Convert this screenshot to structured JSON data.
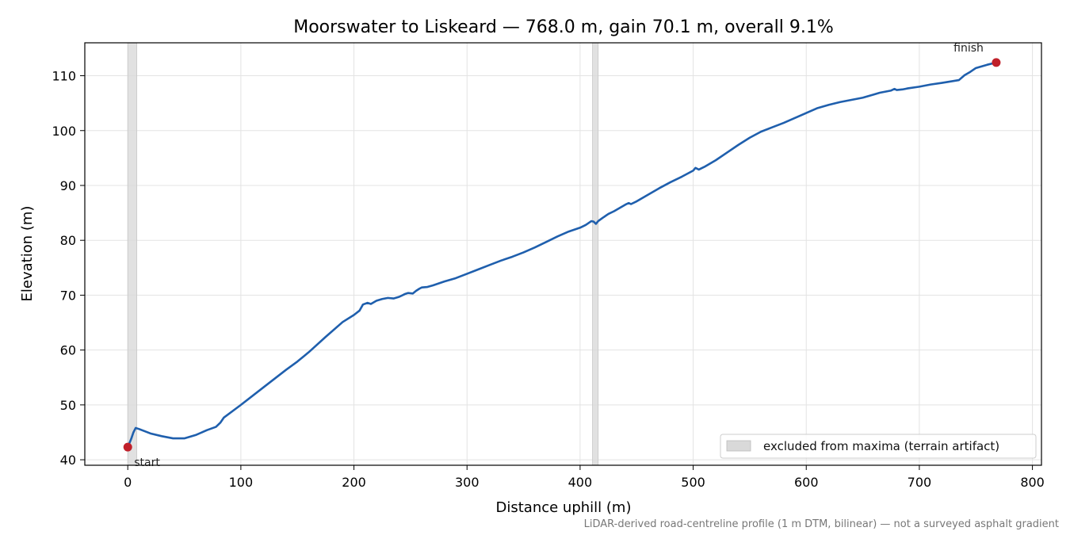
{
  "chart_data": {
    "type": "line",
    "title": "Moorswater to Liskeard — 768.0 m, gain 70.1 m, overall 9.1%",
    "xlabel": "Distance uphill (m)",
    "ylabel": "Elevation (m)",
    "xlim": [
      -38,
      808
    ],
    "ylim": [
      39,
      116
    ],
    "xticks": [
      0,
      100,
      200,
      300,
      400,
      500,
      600,
      700,
      800
    ],
    "yticks": [
      40,
      50,
      60,
      70,
      80,
      90,
      100,
      110
    ],
    "grid": true,
    "legend_position": "bottom-right",
    "colors": {
      "line": "#1f5fad",
      "marker": "#c0202a",
      "band": "#d9d9d9"
    },
    "series": [
      {
        "x": [
          0,
          3,
          5,
          7,
          10,
          15,
          20,
          30,
          40,
          50,
          60,
          70,
          78,
          82,
          85,
          100,
          120,
          140,
          150,
          160,
          175,
          190,
          200,
          205,
          208,
          212,
          215,
          220,
          225,
          230,
          235,
          240,
          245,
          248,
          252,
          255,
          258,
          260,
          265,
          270,
          280,
          290,
          300,
          310,
          320,
          330,
          340,
          350,
          360,
          370,
          380,
          390,
          400,
          405,
          410,
          412,
          414,
          416,
          420,
          425,
          430,
          435,
          440,
          443,
          445,
          450,
          460,
          470,
          480,
          490,
          500,
          502,
          505,
          510,
          520,
          530,
          540,
          550,
          560,
          570,
          580,
          590,
          600,
          610,
          620,
          630,
          640,
          650,
          660,
          665,
          670,
          675,
          678,
          680,
          685,
          690,
          700,
          710,
          720,
          735,
          740,
          745,
          750,
          760,
          768
        ],
        "y": [
          42.3,
          43.8,
          45.0,
          45.8,
          45.6,
          45.2,
          44.8,
          44.3,
          43.9,
          43.9,
          44.5,
          45.4,
          46.0,
          46.8,
          47.7,
          50.0,
          53.2,
          56.4,
          57.9,
          59.6,
          62.4,
          65.1,
          66.4,
          67.2,
          68.3,
          68.6,
          68.4,
          69.0,
          69.3,
          69.5,
          69.4,
          69.7,
          70.2,
          70.4,
          70.3,
          70.8,
          71.2,
          71.4,
          71.5,
          71.8,
          72.5,
          73.1,
          73.9,
          74.7,
          75.5,
          76.3,
          77.0,
          77.8,
          78.7,
          79.7,
          80.7,
          81.6,
          82.3,
          82.8,
          83.5,
          83.4,
          83.0,
          83.5,
          84.1,
          84.8,
          85.3,
          85.9,
          86.5,
          86.8,
          86.6,
          87.1,
          88.3,
          89.5,
          90.6,
          91.6,
          92.7,
          93.2,
          92.9,
          93.4,
          94.6,
          96.0,
          97.4,
          98.7,
          99.8,
          100.6,
          101.4,
          102.3,
          103.2,
          104.1,
          104.7,
          105.2,
          105.6,
          106.0,
          106.6,
          106.9,
          107.1,
          107.3,
          107.6,
          107.4,
          107.5,
          107.7,
          108.0,
          108.4,
          108.7,
          109.2,
          110.1,
          110.7,
          111.4,
          112.0,
          112.4
        ]
      }
    ],
    "excluded_bands": [
      [
        0,
        8
      ],
      [
        411,
        416
      ]
    ],
    "legend": [
      {
        "label": "excluded from maxima (terrain artifact)"
      }
    ],
    "markers": [
      {
        "x": 0,
        "y": 42.3,
        "label": "start"
      },
      {
        "x": 768,
        "y": 112.4,
        "label": "finish"
      }
    ],
    "footnote": "LiDAR-derived road-centreline profile (1 m DTM, bilinear) — not a surveyed asphalt gradient"
  }
}
